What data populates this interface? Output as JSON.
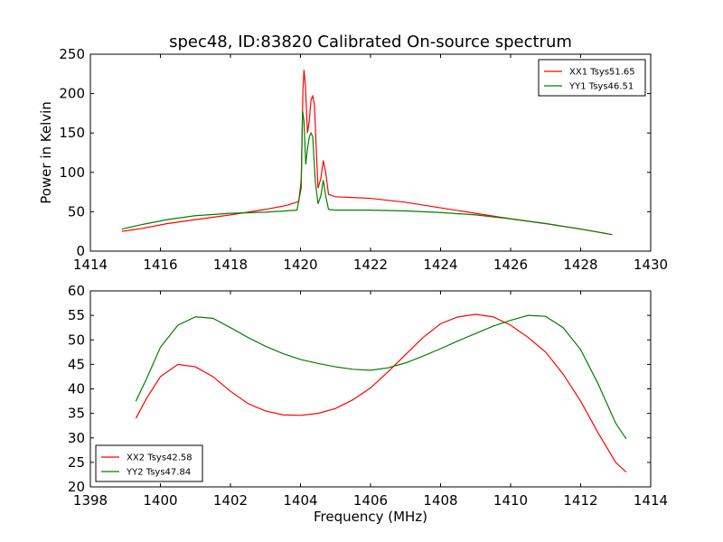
{
  "chart_data": [
    {
      "type": "line",
      "title": "spec48, ID:83820 Calibrated On-source spectrum",
      "xlabel": "",
      "ylabel": "Power in Kelvin",
      "xlim": [
        1414,
        1430
      ],
      "ylim": [
        0,
        250
      ],
      "xticks": [
        1414,
        1416,
        1418,
        1420,
        1422,
        1424,
        1426,
        1428,
        1430
      ],
      "yticks": [
        0,
        50,
        100,
        150,
        200,
        250
      ],
      "grid": false,
      "legend_placement": "top-right",
      "series": [
        {
          "name": "XX1 Tsys51.65",
          "color": "#ff0000",
          "points": [
            [
              1414.9,
              25
            ],
            [
              1415.5,
              29
            ],
            [
              1416.2,
              35
            ],
            [
              1417,
              40
            ],
            [
              1418,
              46
            ],
            [
              1419,
              53
            ],
            [
              1419.6,
              58
            ],
            [
              1419.95,
              63
            ],
            [
              1420.02,
              90
            ],
            [
              1420.07,
              205
            ],
            [
              1420.1,
              230
            ],
            [
              1420.14,
              210
            ],
            [
              1420.2,
              150
            ],
            [
              1420.25,
              165
            ],
            [
              1420.3,
              192
            ],
            [
              1420.35,
              197
            ],
            [
              1420.4,
              185
            ],
            [
              1420.45,
              130
            ],
            [
              1420.5,
              80
            ],
            [
              1420.58,
              92
            ],
            [
              1420.65,
              115
            ],
            [
              1420.72,
              100
            ],
            [
              1420.8,
              72
            ],
            [
              1421,
              69
            ],
            [
              1422,
              67
            ],
            [
              1423,
              62
            ],
            [
              1424,
              55
            ],
            [
              1425,
              48
            ],
            [
              1426,
              41
            ],
            [
              1427,
              35
            ],
            [
              1428,
              28
            ],
            [
              1428.9,
              21
            ]
          ]
        },
        {
          "name": "YY1 Tsys46.51",
          "color": "#008000",
          "points": [
            [
              1414.9,
              28
            ],
            [
              1415.5,
              34
            ],
            [
              1416.2,
              40
            ],
            [
              1417,
              45
            ],
            [
              1418,
              48
            ],
            [
              1419,
              49.5
            ],
            [
              1419.9,
              52
            ],
            [
              1420.02,
              80
            ],
            [
              1420.06,
              178
            ],
            [
              1420.1,
              165
            ],
            [
              1420.15,
              110
            ],
            [
              1420.2,
              130
            ],
            [
              1420.25,
              145
            ],
            [
              1420.3,
              150
            ],
            [
              1420.35,
              145
            ],
            [
              1420.42,
              90
            ],
            [
              1420.5,
              60
            ],
            [
              1420.58,
              70
            ],
            [
              1420.65,
              90
            ],
            [
              1420.72,
              70
            ],
            [
              1420.8,
              53
            ],
            [
              1421,
              52
            ],
            [
              1422,
              52
            ],
            [
              1423,
              51
            ],
            [
              1424,
              49
            ],
            [
              1425,
              46
            ],
            [
              1426,
              41
            ],
            [
              1427,
              35
            ],
            [
              1428,
              28
            ],
            [
              1428.9,
              21
            ]
          ]
        }
      ]
    },
    {
      "type": "line",
      "title": "",
      "xlabel": "Frequency (MHz)",
      "ylabel": "",
      "xlim": [
        1398,
        1414
      ],
      "ylim": [
        20,
        60
      ],
      "xticks": [
        1398,
        1400,
        1402,
        1404,
        1406,
        1408,
        1410,
        1412,
        1414
      ],
      "yticks": [
        20,
        25,
        30,
        35,
        40,
        45,
        50,
        55,
        60
      ],
      "grid": false,
      "legend_placement": "bottom-left",
      "series": [
        {
          "name": "XX2 Tsys42.58",
          "color": "#ff0000",
          "points": [
            [
              1399.3,
              34
            ],
            [
              1399.6,
              38
            ],
            [
              1400,
              42.5
            ],
            [
              1400.5,
              45
            ],
            [
              1401,
              44.5
            ],
            [
              1401.5,
              42.5
            ],
            [
              1402,
              39.5
            ],
            [
              1402.5,
              37
            ],
            [
              1403,
              35.5
            ],
            [
              1403.5,
              34.7
            ],
            [
              1404,
              34.6
            ],
            [
              1404.5,
              35
            ],
            [
              1405,
              36
            ],
            [
              1405.5,
              37.8
            ],
            [
              1406,
              40.2
            ],
            [
              1406.5,
              43.5
            ],
            [
              1407,
              47
            ],
            [
              1407.5,
              50.5
            ],
            [
              1408,
              53.3
            ],
            [
              1408.5,
              54.7
            ],
            [
              1409,
              55.2
            ],
            [
              1409.5,
              54.7
            ],
            [
              1410,
              53
            ],
            [
              1410.5,
              50.5
            ],
            [
              1411,
              47.5
            ],
            [
              1411.5,
              43
            ],
            [
              1412,
              37.5
            ],
            [
              1412.5,
              31
            ],
            [
              1413,
              25
            ],
            [
              1413.3,
              23
            ]
          ]
        },
        {
          "name": "YY2 Tsys47.84",
          "color": "#008000",
          "points": [
            [
              1399.3,
              37.5
            ],
            [
              1399.6,
              42
            ],
            [
              1400,
              48.5
            ],
            [
              1400.5,
              53
            ],
            [
              1401,
              54.7
            ],
            [
              1401.5,
              54.4
            ],
            [
              1402,
              52.5
            ],
            [
              1402.5,
              50.5
            ],
            [
              1403,
              48.7
            ],
            [
              1403.5,
              47.2
            ],
            [
              1404,
              46
            ],
            [
              1404.5,
              45.2
            ],
            [
              1405,
              44.5
            ],
            [
              1405.5,
              44
            ],
            [
              1406,
              43.8
            ],
            [
              1406.5,
              44.3
            ],
            [
              1407,
              45.3
            ],
            [
              1407.5,
              46.7
            ],
            [
              1408,
              48.2
            ],
            [
              1408.5,
              49.8
            ],
            [
              1409,
              51.3
            ],
            [
              1409.5,
              52.8
            ],
            [
              1410,
              54
            ],
            [
              1410.5,
              55
            ],
            [
              1411,
              54.8
            ],
            [
              1411.5,
              52.5
            ],
            [
              1412,
              48
            ],
            [
              1412.5,
              41
            ],
            [
              1413,
              33
            ],
            [
              1413.3,
              29.8
            ]
          ]
        }
      ]
    }
  ]
}
